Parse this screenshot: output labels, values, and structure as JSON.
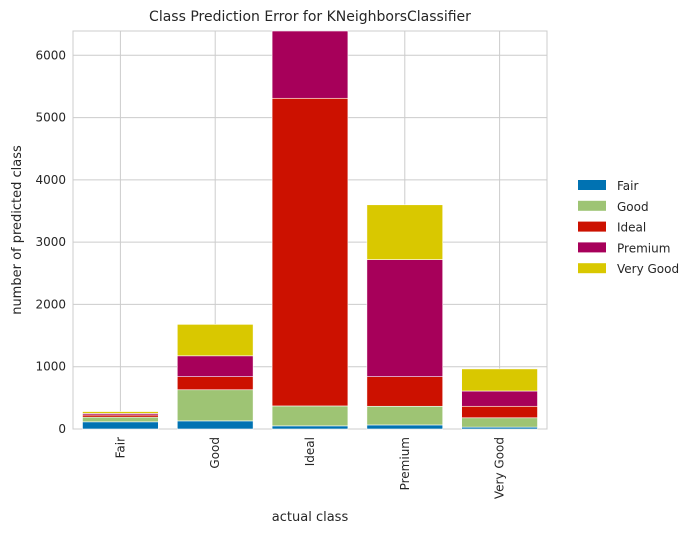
{
  "chart_data": {
    "type": "bar",
    "stacked": true,
    "title": "Class Prediction Error for KNeighborsClassifier",
    "xlabel": "actual class",
    "ylabel": "number of predicted class",
    "categories": [
      "Fair",
      "Good",
      "Ideal",
      "Premium",
      "Very Good"
    ],
    "ylim": [
      0,
      6390
    ],
    "yticks": [
      0,
      1000,
      2000,
      3000,
      4000,
      5000,
      6000
    ],
    "grid": true,
    "legend_position": "right",
    "series": [
      {
        "name": "Fair",
        "color": "#0072b2",
        "values": [
          115,
          130,
          50,
          65,
          30
        ]
      },
      {
        "name": "Good",
        "color": "#9ec474",
        "values": [
          75,
          500,
          320,
          300,
          150
        ]
      },
      {
        "name": "Ideal",
        "color": "#cc1100",
        "values": [
          35,
          210,
          4940,
          475,
          185
        ]
      },
      {
        "name": "Premium",
        "color": "#a7005a",
        "values": [
          25,
          335,
          1080,
          1880,
          245
        ]
      },
      {
        "name": "Very Good",
        "color": "#d9c800",
        "values": [
          30,
          505,
          0,
          880,
          355
        ]
      }
    ]
  }
}
